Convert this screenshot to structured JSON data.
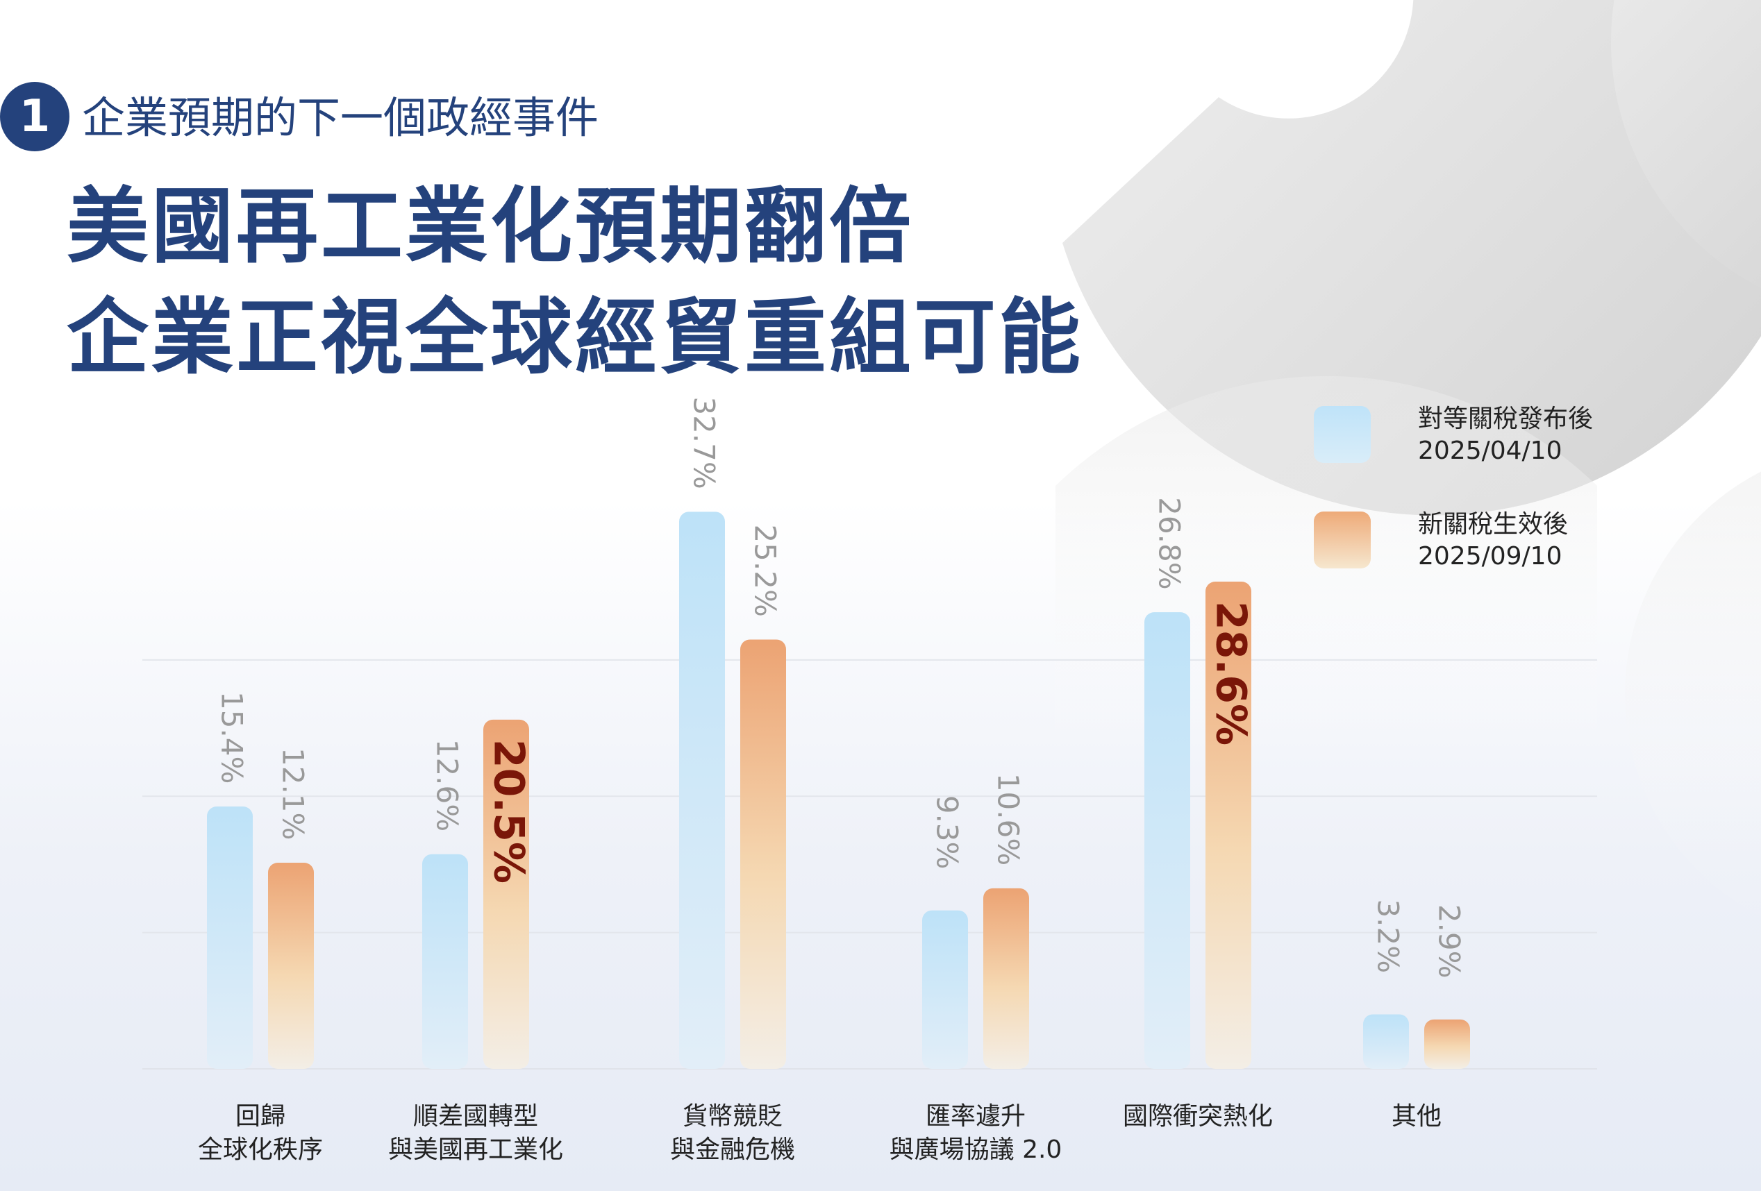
{
  "header": {
    "step_number": "1",
    "eyebrow": "企業預期的下一個政經事件",
    "title_line1": "美國再工業化預期翻倍",
    "title_line2": "企業正視全球經貿重組可能"
  },
  "legend": [
    {
      "label": "對等關稅發布後",
      "date": "2025/04/10"
    },
    {
      "label": "新關稅生效後",
      "date": "2025/09/10"
    }
  ],
  "colors": {
    "title": "#24427c",
    "series_a": "#bfe3f9",
    "series_b": "#eeaa78",
    "highlight_text": "#7a1608",
    "label_grey": "#999999"
  },
  "chart_data": {
    "type": "bar",
    "categories": [
      [
        "回歸",
        "全球化秩序"
      ],
      [
        "順差國轉型",
        "與美國再工業化"
      ],
      [
        "貨幣競貶",
        "與金融危機"
      ],
      [
        "匯率遽升",
        "與廣場協議 2.0"
      ],
      [
        "國際衝突熱化"
      ],
      [
        "其他"
      ]
    ],
    "series": [
      {
        "name": "對等關稅發布後 2025/04/10",
        "values": [
          15.4,
          12.6,
          32.7,
          9.3,
          26.8,
          3.2
        ]
      },
      {
        "name": "新關稅生效後 2025/09/10",
        "values": [
          12.1,
          20.5,
          25.2,
          10.6,
          28.6,
          2.9
        ]
      }
    ],
    "value_labels": [
      [
        "15.4%",
        "12.6%",
        "32.7%",
        "9.3%",
        "26.8%",
        "3.2%"
      ],
      [
        "12.1%",
        "20.5%",
        "25.2%",
        "10.6%",
        "28.6%",
        "2.9%"
      ]
    ],
    "highlighted": [
      [
        1,
        1
      ],
      [
        1,
        4
      ]
    ],
    "ylim": [
      0,
      33
    ],
    "grid": true,
    "legend_position": "top-right"
  }
}
